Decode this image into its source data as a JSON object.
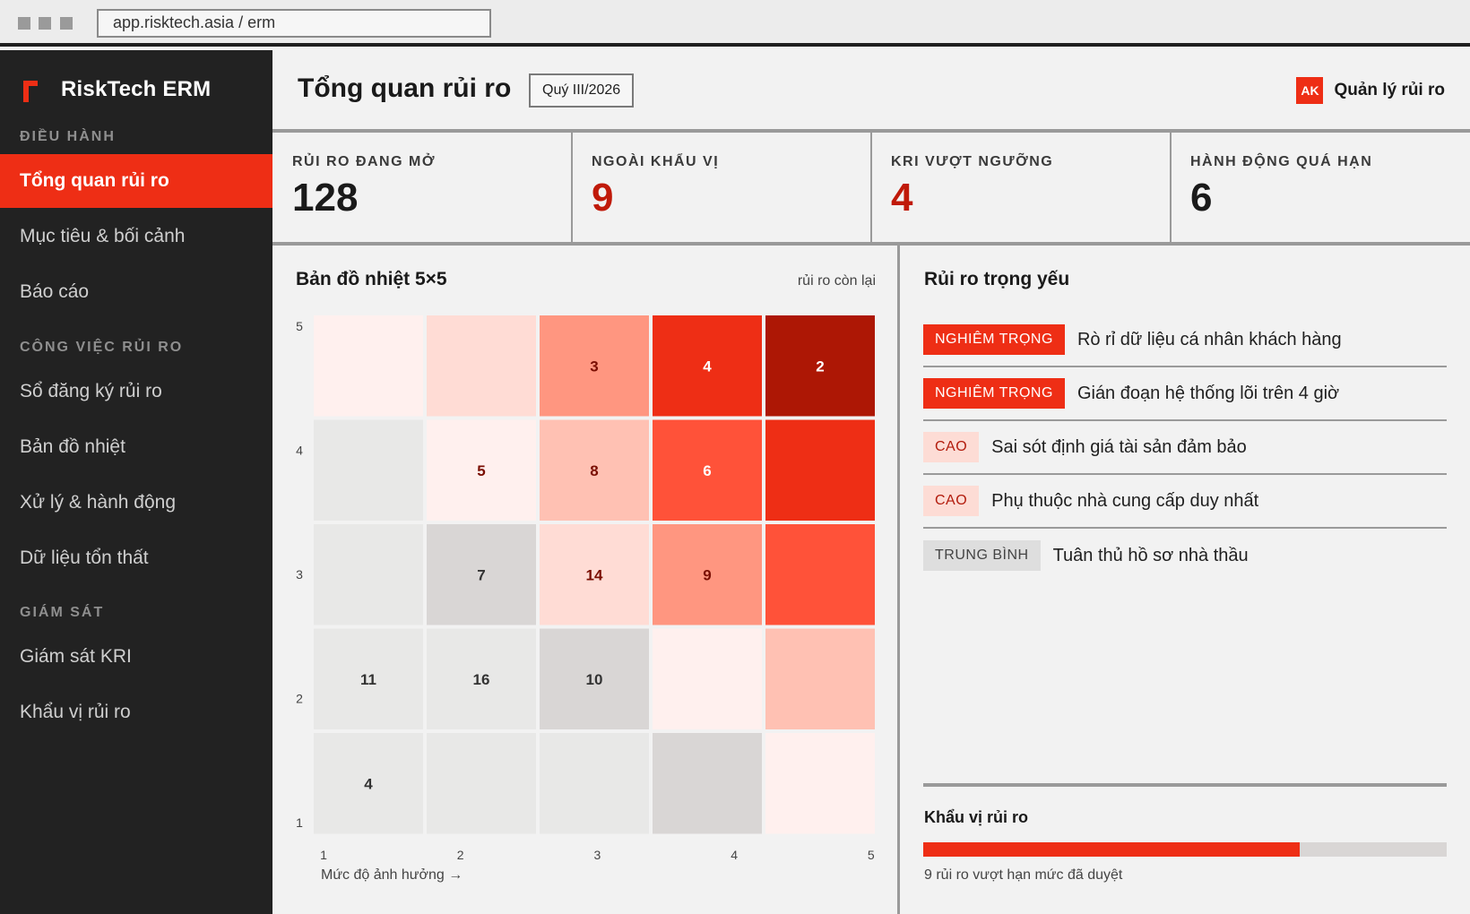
{
  "browser": {
    "url": "app.risktech.asia / erm"
  },
  "app": {
    "name": "RiskTech ERM"
  },
  "sidebar": {
    "sections": [
      {
        "title": "ĐIỀU HÀNH",
        "items": [
          {
            "label": "Tổng quan rủi ro",
            "active": true
          },
          {
            "label": "Mục tiêu & bối cảnh"
          },
          {
            "label": "Báo cáo"
          }
        ]
      },
      {
        "title": "CÔNG VIỆC RỦI RO",
        "items": [
          {
            "label": "Sổ đăng ký rủi ro"
          },
          {
            "label": "Bản đồ nhiệt"
          },
          {
            "label": "Xử lý & hành động"
          },
          {
            "label": "Dữ liệu tổn thất"
          }
        ]
      },
      {
        "title": "GIÁM SÁT",
        "items": [
          {
            "label": "Giám sát KRI"
          },
          {
            "label": "Khẩu vị rủi ro"
          }
        ]
      }
    ]
  },
  "header": {
    "title": "Tổng quan rủi ro",
    "period": "Quý III/2026",
    "user": {
      "initials": "AK",
      "name": "Quản lý rủi ro"
    }
  },
  "kpis": [
    {
      "label": "RỦI RO ĐANG MỞ",
      "value": "128",
      "accent": false
    },
    {
      "label": "NGOÀI KHẨU VỊ",
      "value": "9",
      "accent": true
    },
    {
      "label": "KRI VƯỢT NGƯỠNG",
      "value": "4",
      "accent": true
    },
    {
      "label": "HÀNH ĐỘNG QUÁ HẠN",
      "value": "6",
      "accent": false
    }
  ],
  "heatmap": {
    "title": "Bản đồ nhiệt 5×5",
    "subtitle": "rủi ro còn lại",
    "x_label": "Mức độ ảnh hưởng →",
    "y_ticks": [
      "5",
      "4",
      "3",
      "2",
      "1"
    ],
    "x_ticks": [
      "1",
      "2",
      "3",
      "4",
      "5"
    ],
    "cells": [
      [
        {
          "v": "",
          "c": "#fff0ee"
        },
        {
          "v": "",
          "c": "#ffdcd5"
        },
        {
          "v": "3",
          "c": "#ff9680"
        },
        {
          "v": "4",
          "c": "#ee2e15"
        },
        {
          "v": "2",
          "c": "#ad1705"
        }
      ],
      [
        {
          "v": "",
          "c": "#e8e8e7"
        },
        {
          "v": "5",
          "c": "#fff0ee"
        },
        {
          "v": "8",
          "c": "#ffc1b3"
        },
        {
          "v": "6",
          "c": "#ff5239"
        },
        {
          "v": "",
          "c": "#ee2e15"
        }
      ],
      [
        {
          "v": "",
          "c": "#e8e8e7"
        },
        {
          "v": "7",
          "c": "#d9d6d5"
        },
        {
          "v": "14",
          "c": "#ffdcd5"
        },
        {
          "v": "9",
          "c": "#ff9680"
        },
        {
          "v": "",
          "c": "#ff5239"
        }
      ],
      [
        {
          "v": "11",
          "c": "#e8e8e7"
        },
        {
          "v": "16",
          "c": "#e8e8e7"
        },
        {
          "v": "10",
          "c": "#d9d6d5"
        },
        {
          "v": "",
          "c": "#fff0ee"
        },
        {
          "v": "",
          "c": "#ffc1b3"
        }
      ],
      [
        {
          "v": "4",
          "c": "#e8e8e7"
        },
        {
          "v": "",
          "c": "#e8e8e7"
        },
        {
          "v": "",
          "c": "#e8e8e7"
        },
        {
          "v": "",
          "c": "#d9d6d5"
        },
        {
          "v": "",
          "c": "#fff0ee"
        }
      ]
    ]
  },
  "key_risks": {
    "title": "Rủi ro trọng yếu",
    "items": [
      {
        "level": "NGHIÊM TRỌNG",
        "kind": "sev",
        "name": "Rò rỉ dữ liệu cá nhân khách hàng"
      },
      {
        "level": "NGHIÊM TRỌNG",
        "kind": "sev",
        "name": "Gián đoạn hệ thống lõi trên 4 giờ"
      },
      {
        "level": "CAO",
        "kind": "high",
        "name": "Sai sót định giá tài sản đảm bảo"
      },
      {
        "level": "CAO",
        "kind": "high",
        "name": "Phụ thuộc nhà cung cấp duy nhất"
      },
      {
        "level": "TRUNG BÌNH",
        "kind": "med",
        "name": "Tuân thủ hồ sơ nhà thầu"
      }
    ]
  },
  "appetite": {
    "title": "Khẩu vị rủi ro",
    "fill_fraction": 0.72,
    "note": "9 rủi ro vượt hạn mức đã duyệt"
  },
  "colors": {
    "accent": "#ee2e15",
    "accent_dark": "#c01a0a",
    "sidebar_bg": "#222222",
    "page_bg": "#f2f2f2"
  }
}
